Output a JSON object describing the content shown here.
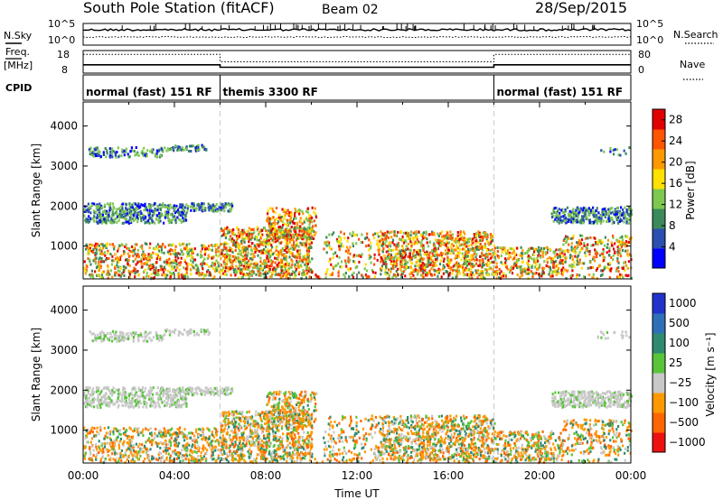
{
  "header": {
    "station": "South Pole Station (fitACF)",
    "beam": "Beam 02",
    "date": "28/Sep/2015"
  },
  "chart_data": [
    {
      "type": "line",
      "panel": "noise",
      "left_label": "N.Sky",
      "right_label": "N.Search",
      "left_ticks": [
        "10^5",
        "10^0"
      ],
      "right_ticks": [
        "10^5",
        "10^0"
      ],
      "series": [
        {
          "name": "N.Sky",
          "style": "solid"
        },
        {
          "name": "N.Search",
          "style": "dotted"
        }
      ]
    },
    {
      "type": "line",
      "panel": "frequency",
      "left_label_top": "Freq.",
      "left_label_bottom": "[MHz]",
      "right_label": "Nave",
      "left_ticks": [
        18,
        8
      ],
      "right_ticks": [
        80,
        0
      ],
      "freq_segments": [
        {
          "start": 0,
          "end": 6,
          "value": 12
        },
        {
          "start": 6,
          "end": 18,
          "value": 10.5
        },
        {
          "start": 18,
          "end": 24,
          "value": 12
        }
      ],
      "nave_segments": [
        {
          "start": 0,
          "end": 6,
          "value": 75
        },
        {
          "start": 6,
          "end": 18,
          "value": 42
        },
        {
          "start": 18,
          "end": 24,
          "value": 75
        }
      ]
    },
    {
      "type": "table",
      "panel": "cpid",
      "label": "CPID",
      "segments": [
        {
          "start": 0,
          "end": 6,
          "label": "normal (fast) 151 RF"
        },
        {
          "start": 6,
          "end": 18,
          "label": "themis 3300 RF"
        },
        {
          "start": 18,
          "end": 24,
          "label": "normal (fast) 151 RF"
        }
      ]
    },
    {
      "type": "heatmap",
      "panel": "power",
      "ylabel": "Slant Range [km]",
      "y_ticks": [
        1000,
        2000,
        3000,
        4000
      ],
      "ylim": [
        180,
        4600
      ],
      "xlim": [
        0,
        24
      ],
      "colorbar": {
        "label": "Power [dB]",
        "ticks": [
          4,
          8,
          12,
          16,
          20,
          24,
          28
        ],
        "range": [
          0,
          30
        ],
        "colors": [
          "#0000ff",
          "#2a4fb0",
          "#3a8a5a",
          "#7ec850",
          "#ffe000",
          "#ff9900",
          "#ff5500",
          "#e00000"
        ]
      }
    },
    {
      "type": "heatmap",
      "panel": "velocity",
      "ylabel": "Slant Range [km]",
      "y_ticks": [
        1000,
        2000,
        3000,
        4000
      ],
      "ylim": [
        180,
        4600
      ],
      "xlim": [
        0,
        24
      ],
      "x_ticks": [
        "00:00",
        "04:00",
        "08:00",
        "12:00",
        "16:00",
        "20:00",
        "00:00"
      ],
      "xlabel": "Time UT",
      "colorbar": {
        "label": "Velocity [m s⁻¹]",
        "ticks": [
          "1000",
          "500",
          "100",
          "25",
          "−25",
          "−100",
          "−500",
          "−1000"
        ],
        "colors": [
          "#2233cc",
          "#2e6fb8",
          "#2e8a70",
          "#59c43a",
          "#c8c8c8",
          "#ff9900",
          "#ff6600",
          "#ee1111"
        ]
      }
    }
  ],
  "colors": {
    "axis": "#000000",
    "gridline": "#c8c8c8",
    "background": "#ffffff"
  }
}
